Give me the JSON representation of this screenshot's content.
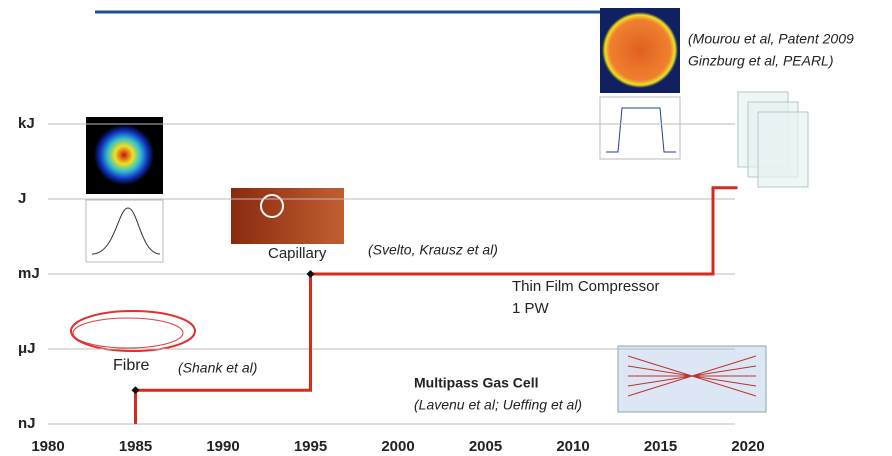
{
  "chart_data": {
    "type": "step-line",
    "x": [
      1985,
      1985,
      1995,
      1995,
      2018,
      2018,
      2019.4
    ],
    "values": [
      0,
      0.45,
      0.45,
      2,
      2,
      3.15,
      3.15
    ],
    "color": "#d52b1e",
    "xlim": [
      1980,
      2020
    ],
    "xticks": [
      1980,
      1985,
      1990,
      1995,
      2000,
      2005,
      2010,
      2015,
      2020
    ],
    "ylim": [
      0,
      4
    ],
    "yticks": [
      {
        "value": 0,
        "label": "nJ"
      },
      {
        "value": 1,
        "label": "μJ"
      },
      {
        "value": 2,
        "label": "mJ"
      },
      {
        "value": 3,
        "label": "J"
      },
      {
        "value": 4,
        "label": "kJ"
      }
    ],
    "grid": true,
    "annotations": [
      {
        "text": "Fibre"
      },
      {
        "text": "(Shank et al)"
      },
      {
        "text": "Capillary"
      },
      {
        "text": "(Svelto, Krausz et al)"
      },
      {
        "text": "Thin Film Compressor"
      },
      {
        "text": "1 PW"
      },
      {
        "text": "Multipass Gas Cell"
      },
      {
        "text": "(Lavenu et al; Ueffing et al)"
      },
      {
        "text": "(Mourou et al, Patent 2009"
      },
      {
        "text": "Ginzburg et al, PEARL)"
      }
    ]
  }
}
